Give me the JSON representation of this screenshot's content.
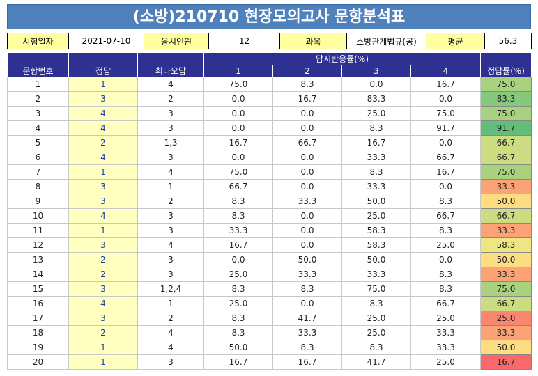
{
  "title": "(소방)210710 현장모의고사 문항분석표",
  "info": {
    "date_label": "시험일자",
    "date_value": "2021-07-10",
    "count_label": "응시인원",
    "count_value": "12",
    "subject_label": "과목",
    "subject_value": "소방관계법규(공)",
    "avg_label": "평균",
    "avg_value": "56.3"
  },
  "headers": {
    "qnum": "문항번호",
    "answer": "정답",
    "top_wrong": "최다오답",
    "response_group": "답지반응률(%)",
    "opt1": "1",
    "opt2": "2",
    "opt3": "3",
    "opt4": "4",
    "rate": "정답률(%)"
  },
  "colors": {
    "header_blue": "#2e3192",
    "title_blue": "#4f81bd",
    "rate_low": "#f8696b",
    "rate_mid": "#ffeb84",
    "rate_high": "#63be7b"
  },
  "rows": [
    {
      "q": "1",
      "ans": "1",
      "wrong": "4",
      "o1": "75.0",
      "o2": "8.3",
      "o3": "0.0",
      "o4": "16.7",
      "rate": "75.0"
    },
    {
      "q": "2",
      "ans": "3",
      "wrong": "2",
      "o1": "0.0",
      "o2": "16.7",
      "o3": "83.3",
      "o4": "0.0",
      "rate": "83.3"
    },
    {
      "q": "3",
      "ans": "4",
      "wrong": "3",
      "o1": "0.0",
      "o2": "0.0",
      "o3": "25.0",
      "o4": "75.0",
      "rate": "75.0"
    },
    {
      "q": "4",
      "ans": "4",
      "wrong": "3",
      "o1": "0.0",
      "o2": "0.0",
      "o3": "8.3",
      "o4": "91.7",
      "rate": "91.7"
    },
    {
      "q": "5",
      "ans": "2",
      "wrong": "1,3",
      "o1": "16.7",
      "o2": "66.7",
      "o3": "16.7",
      "o4": "0.0",
      "rate": "66.7"
    },
    {
      "q": "6",
      "ans": "4",
      "wrong": "3",
      "o1": "0.0",
      "o2": "0.0",
      "o3": "33.3",
      "o4": "66.7",
      "rate": "66.7"
    },
    {
      "q": "7",
      "ans": "1",
      "wrong": "4",
      "o1": "75.0",
      "o2": "0.0",
      "o3": "8.3",
      "o4": "16.7",
      "rate": "75.0"
    },
    {
      "q": "8",
      "ans": "3",
      "wrong": "1",
      "o1": "66.7",
      "o2": "0.0",
      "o3": "33.3",
      "o4": "0.0",
      "rate": "33.3"
    },
    {
      "q": "9",
      "ans": "3",
      "wrong": "2",
      "o1": "8.3",
      "o2": "33.3",
      "o3": "50.0",
      "o4": "8.3",
      "rate": "50.0"
    },
    {
      "q": "10",
      "ans": "4",
      "wrong": "3",
      "o1": "8.3",
      "o2": "0.0",
      "o3": "25.0",
      "o4": "66.7",
      "rate": "66.7"
    },
    {
      "q": "11",
      "ans": "1",
      "wrong": "3",
      "o1": "33.3",
      "o2": "0.0",
      "o3": "58.3",
      "o4": "8.3",
      "rate": "33.3"
    },
    {
      "q": "12",
      "ans": "3",
      "wrong": "4",
      "o1": "16.7",
      "o2": "0.0",
      "o3": "58.3",
      "o4": "25.0",
      "rate": "58.3"
    },
    {
      "q": "13",
      "ans": "2",
      "wrong": "3",
      "o1": "0.0",
      "o2": "50.0",
      "o3": "50.0",
      "o4": "0.0",
      "rate": "50.0"
    },
    {
      "q": "14",
      "ans": "2",
      "wrong": "3",
      "o1": "25.0",
      "o2": "33.3",
      "o3": "33.3",
      "o4": "8.3",
      "rate": "33.3"
    },
    {
      "q": "15",
      "ans": "3",
      "wrong": "1,2,4",
      "o1": "8.3",
      "o2": "8.3",
      "o3": "75.0",
      "o4": "8.3",
      "rate": "75.0"
    },
    {
      "q": "16",
      "ans": "4",
      "wrong": "1",
      "o1": "25.0",
      "o2": "0.0",
      "o3": "8.3",
      "o4": "66.7",
      "rate": "66.7"
    },
    {
      "q": "17",
      "ans": "3",
      "wrong": "2",
      "o1": "8.3",
      "o2": "41.7",
      "o3": "25.0",
      "o4": "25.0",
      "rate": "25.0"
    },
    {
      "q": "18",
      "ans": "2",
      "wrong": "4",
      "o1": "8.3",
      "o2": "33.3",
      "o3": "25.0",
      "o4": "33.3",
      "rate": "33.3"
    },
    {
      "q": "19",
      "ans": "1",
      "wrong": "4",
      "o1": "50.0",
      "o2": "8.3",
      "o3": "8.3",
      "o4": "33.3",
      "rate": "50.0"
    },
    {
      "q": "20",
      "ans": "1",
      "wrong": "3",
      "o1": "16.7",
      "o2": "16.7",
      "o3": "41.7",
      "o4": "25.0",
      "rate": "16.7"
    }
  ]
}
